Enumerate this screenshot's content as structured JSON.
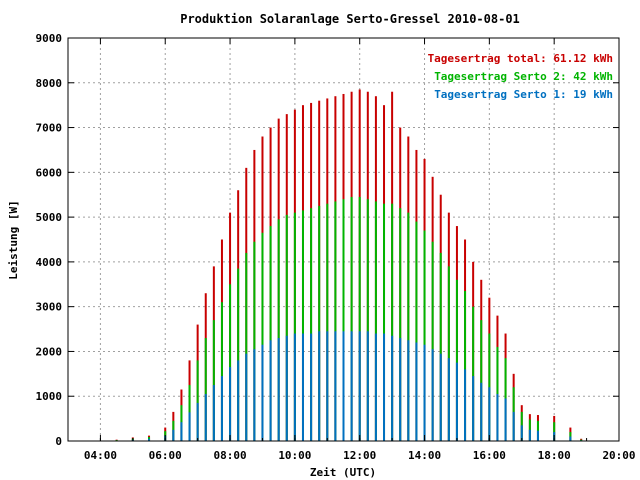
{
  "chart_data": {
    "type": "bar",
    "title": "Produktion Solaranlage Serto-Gressel 2010-08-01",
    "xlabel": "Zeit (UTC)",
    "ylabel": "Leistung [W]",
    "x_ticks": [
      "04:00",
      "06:00",
      "08:00",
      "10:00",
      "12:00",
      "14:00",
      "16:00",
      "18:00",
      "20:00"
    ],
    "y_ticks": [
      "0",
      "1000",
      "2000",
      "3000",
      "4000",
      "5000",
      "6000",
      "7000",
      "8000",
      "9000"
    ],
    "xlim_hours": [
      3,
      20
    ],
    "ylim": [
      0,
      9000
    ],
    "grid": true,
    "legend_position": "top-right",
    "series": [
      {
        "name": "Tagesertrag total: 61.12 kWh",
        "color": "#c80000",
        "x": [
          "04:30",
          "05:00",
          "05:30",
          "06:00",
          "06:15",
          "06:30",
          "06:45",
          "07:00",
          "07:15",
          "07:30",
          "07:45",
          "08:00",
          "08:15",
          "08:30",
          "08:45",
          "09:00",
          "09:15",
          "09:30",
          "09:45",
          "10:00",
          "10:15",
          "10:30",
          "10:45",
          "11:00",
          "11:15",
          "11:30",
          "11:45",
          "12:00",
          "12:15",
          "12:30",
          "12:45",
          "13:00",
          "13:15",
          "13:30",
          "13:45",
          "14:00",
          "14:15",
          "14:30",
          "14:45",
          "15:00",
          "15:15",
          "15:30",
          "15:45",
          "16:00",
          "16:15",
          "16:30",
          "16:45",
          "17:00",
          "17:15",
          "17:30",
          "18:00",
          "18:30",
          "18:50"
        ],
        "values": [
          30,
          80,
          120,
          300,
          650,
          1150,
          1800,
          2600,
          3300,
          3900,
          4500,
          5100,
          5600,
          6100,
          6500,
          6800,
          7000,
          7200,
          7300,
          7400,
          7500,
          7550,
          7600,
          7650,
          7700,
          7750,
          7800,
          7850,
          7800,
          7700,
          7500,
          7800,
          7000,
          6800,
          6500,
          6300,
          5900,
          5500,
          5100,
          4800,
          4500,
          4000,
          3600,
          3200,
          2800,
          2400,
          1500,
          800,
          600,
          580,
          560,
          300,
          50
        ]
      },
      {
        "name": "Tagesertrag Serto 2: 42 kWh",
        "color": "#00b400",
        "x": [
          "04:30",
          "05:00",
          "05:30",
          "06:00",
          "06:15",
          "06:30",
          "06:45",
          "07:00",
          "07:15",
          "07:30",
          "07:45",
          "08:00",
          "08:15",
          "08:30",
          "08:45",
          "09:00",
          "09:15",
          "09:30",
          "09:45",
          "10:00",
          "10:15",
          "10:30",
          "10:45",
          "11:00",
          "11:15",
          "11:30",
          "11:45",
          "12:00",
          "12:15",
          "12:30",
          "12:45",
          "13:00",
          "13:15",
          "13:30",
          "13:45",
          "14:00",
          "14:15",
          "14:30",
          "14:45",
          "15:00",
          "15:15",
          "15:30",
          "15:45",
          "16:00",
          "16:15",
          "16:30",
          "16:45",
          "17:00",
          "17:15",
          "17:30",
          "18:00",
          "18:30",
          "18:50"
        ],
        "values": [
          20,
          55,
          90,
          220,
          450,
          800,
          1250,
          1800,
          2300,
          2700,
          3100,
          3500,
          3850,
          4200,
          4450,
          4650,
          4800,
          4950,
          5050,
          5100,
          5150,
          5200,
          5250,
          5300,
          5350,
          5400,
          5450,
          5450,
          5400,
          5350,
          5300,
          5300,
          5200,
          5100,
          4900,
          4700,
          4450,
          4200,
          3900,
          3600,
          3350,
          3000,
          2700,
          2400,
          2100,
          1850,
          1200,
          650,
          480,
          450,
          420,
          200,
          30
        ]
      },
      {
        "name": "Tagesertrag Serto 1: 19 kWh",
        "color": "#0070c0",
        "x": [
          "04:30",
          "05:00",
          "05:30",
          "06:00",
          "06:15",
          "06:30",
          "06:45",
          "07:00",
          "07:15",
          "07:30",
          "07:45",
          "08:00",
          "08:15",
          "08:30",
          "08:45",
          "09:00",
          "09:15",
          "09:30",
          "09:45",
          "10:00",
          "10:15",
          "10:30",
          "10:45",
          "11:00",
          "11:15",
          "11:30",
          "11:45",
          "12:00",
          "12:15",
          "12:30",
          "12:45",
          "13:00",
          "13:15",
          "13:30",
          "13:45",
          "14:00",
          "14:15",
          "14:30",
          "14:45",
          "15:00",
          "15:15",
          "15:30",
          "15:45",
          "16:00",
          "16:15",
          "16:30",
          "16:45",
          "17:00",
          "17:15",
          "17:30",
          "18:00",
          "18:30",
          "18:50"
        ],
        "values": [
          10,
          30,
          50,
          120,
          250,
          420,
          640,
          850,
          1050,
          1250,
          1450,
          1650,
          1800,
          1950,
          2050,
          2150,
          2250,
          2300,
          2350,
          2400,
          2400,
          2400,
          2450,
          2450,
          2450,
          2450,
          2450,
          2450,
          2450,
          2400,
          2400,
          2350,
          2300,
          2250,
          2200,
          2150,
          2050,
          1950,
          1850,
          1750,
          1600,
          1450,
          1300,
          1200,
          1050,
          950,
          650,
          350,
          250,
          230,
          200,
          100,
          15
        ]
      }
    ]
  }
}
